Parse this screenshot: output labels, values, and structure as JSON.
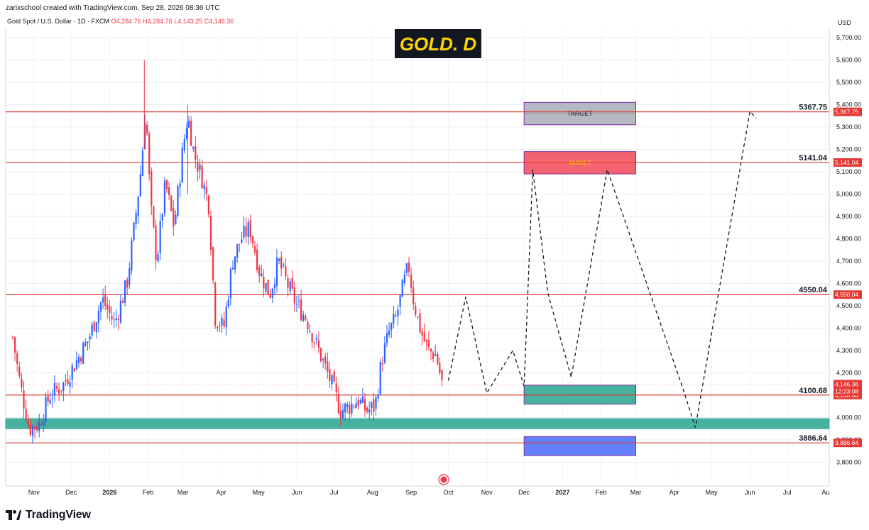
{
  "header": {
    "author_line": "zarixschool created with TradingView.com, Sep 28, 2026 08:36 UTC",
    "symbol": "Gold Spot / U.S. Dollar · 1D · FXCM",
    "open": "O4,284.76",
    "high": "H4,284.76",
    "low": "L4,143.25",
    "close": "C4,146.36",
    "currency": "USD"
  },
  "footer": {
    "brand": "TradingView"
  },
  "colors": {
    "up": "#2962ff",
    "down": "#f23645",
    "level_line": "#e53935",
    "grid": "#d1d4dc",
    "teal_zone": "#3fae9b",
    "target_gray": "#b2b5be",
    "target_red": "#f45b69",
    "blue_zone": "#5b7cfa",
    "title_bg": "#131722",
    "title_fg": "#ffd600"
  },
  "chart_data": {
    "type": "candlestick",
    "title": "GOLD. D",
    "x_axis_labels": [
      "Nov",
      "Dec",
      "2026",
      "Feb",
      "Mar",
      "Apr",
      "May",
      "Jun",
      "Jul",
      "Aug",
      "Sep",
      "Oct",
      "Nov",
      "Dec",
      "2027",
      "Feb",
      "Mar",
      "Apr",
      "May",
      "Jun",
      "Jul",
      "Au"
    ],
    "y_axis_ticks": [
      "5,700.00",
      "5,600.00",
      "5,500.00",
      "5,400.00",
      "5,300.00",
      "5,200.00",
      "5,100.00",
      "5,000.00",
      "4,900.00",
      "4,800.00",
      "4,700.00",
      "4,600.00",
      "4,500.00",
      "4,400.00",
      "4,300.00",
      "4,200.00",
      "4,000.00",
      "3,900.00",
      "3,800.00"
    ],
    "y_range": [
      3700,
      5740
    ],
    "levels": [
      {
        "label": "5367.75",
        "value": 5367.75,
        "axis_label": "5,367.75"
      },
      {
        "label": "5141.04",
        "value": 5141.04,
        "axis_label": "5,141.04"
      },
      {
        "label": "4550.04",
        "value": 4550.04,
        "axis_label": "4,550.04"
      },
      {
        "label": "4100.68",
        "value": 4100.68,
        "axis_label": "4,100.68"
      },
      {
        "label": "3886.64",
        "value": 3886.64,
        "axis_label": "3,886.64"
      }
    ],
    "current_price": {
      "value": 4146.36,
      "label": "4,146.36",
      "countdown": "12:23:08"
    },
    "zones": [
      {
        "name": "target-upper",
        "label": "TARGET",
        "low": 5310,
        "high": 5410,
        "x_start": "2026-12-01",
        "x_end": "2027-03-01"
      },
      {
        "name": "target-lower",
        "label": "TARGET",
        "low": 5090,
        "high": 5190,
        "x_start": "2026-12-01",
        "x_end": "2027-03-01"
      },
      {
        "name": "support-box",
        "label": "",
        "low": 4060,
        "high": 4145,
        "x_start": "2026-12-01",
        "x_end": "2027-03-01"
      },
      {
        "name": "support-band",
        "label": "",
        "low": 3950,
        "high": 3995,
        "x_start": "2025-10-15",
        "x_end": "2027-08-01"
      },
      {
        "name": "demand-box",
        "label": "",
        "low": 3830,
        "high": 3915,
        "x_start": "2026-12-01",
        "x_end": "2027-03-01"
      }
    ],
    "projection_path": [
      {
        "x": "2026-10-01",
        "y": 4165
      },
      {
        "x": "2026-10-15",
        "y": 4540
      },
      {
        "x": "2026-11-01",
        "y": 4110
      },
      {
        "x": "2026-11-22",
        "y": 4300
      },
      {
        "x": "2026-12-01",
        "y": 4140
      },
      {
        "x": "2026-12-08",
        "y": 5110
      },
      {
        "x": "2026-12-20",
        "y": 4560
      },
      {
        "x": "2027-01-08",
        "y": 4180
      },
      {
        "x": "2027-02-06",
        "y": 5110
      },
      {
        "x": "2027-04-08",
        "y": 4130
      },
      {
        "x": "2027-04-18",
        "y": 3955
      },
      {
        "x": "2027-06-01",
        "y": 5370
      },
      {
        "x": "2027-06-06",
        "y": 5340
      }
    ],
    "price_path": [
      {
        "x": "2025-10-15",
        "y": 4360
      },
      {
        "x": "2025-10-20",
        "y": 4180
      },
      {
        "x": "2025-10-28",
        "y": 3950
      },
      {
        "x": "2025-11-05",
        "y": 3970
      },
      {
        "x": "2025-11-14",
        "y": 4100
      },
      {
        "x": "2025-11-25",
        "y": 4150
      },
      {
        "x": "2025-12-05",
        "y": 4250
      },
      {
        "x": "2025-12-15",
        "y": 4350
      },
      {
        "x": "2025-12-26",
        "y": 4530
      },
      {
        "x": "2026-01-05",
        "y": 4420
      },
      {
        "x": "2026-01-15",
        "y": 4600
      },
      {
        "x": "2026-01-22",
        "y": 4900
      },
      {
        "x": "2026-01-27",
        "y": 5150
      },
      {
        "x": "2026-01-30",
        "y": 5400
      },
      {
        "x": "2026-02-03",
        "y": 4950
      },
      {
        "x": "2026-02-08",
        "y": 4700
      },
      {
        "x": "2026-02-15",
        "y": 5050
      },
      {
        "x": "2026-02-22",
        "y": 4850
      },
      {
        "x": "2026-03-01",
        "y": 5200
      },
      {
        "x": "2026-03-05",
        "y": 5350
      },
      {
        "x": "2026-03-10",
        "y": 5180
      },
      {
        "x": "2026-03-16",
        "y": 5080
      },
      {
        "x": "2026-03-22",
        "y": 4950
      },
      {
        "x": "2026-03-27",
        "y": 4450
      },
      {
        "x": "2026-04-03",
        "y": 4400
      },
      {
        "x": "2026-04-10",
        "y": 4700
      },
      {
        "x": "2026-04-17",
        "y": 4800
      },
      {
        "x": "2026-04-24",
        "y": 4850
      },
      {
        "x": "2026-05-02",
        "y": 4650
      },
      {
        "x": "2026-05-10",
        "y": 4550
      },
      {
        "x": "2026-05-17",
        "y": 4700
      },
      {
        "x": "2026-05-24",
        "y": 4600
      },
      {
        "x": "2026-06-01",
        "y": 4500
      },
      {
        "x": "2026-06-08",
        "y": 4450
      },
      {
        "x": "2026-06-15",
        "y": 4350
      },
      {
        "x": "2026-06-22",
        "y": 4250
      },
      {
        "x": "2026-06-29",
        "y": 4150
      },
      {
        "x": "2026-07-06",
        "y": 4030
      },
      {
        "x": "2026-07-13",
        "y": 4050
      },
      {
        "x": "2026-07-20",
        "y": 4080
      },
      {
        "x": "2026-07-27",
        "y": 4030
      },
      {
        "x": "2026-08-03",
        "y": 4050
      },
      {
        "x": "2026-08-08",
        "y": 4250
      },
      {
        "x": "2026-08-14",
        "y": 4380
      },
      {
        "x": "2026-08-20",
        "y": 4450
      },
      {
        "x": "2026-08-26",
        "y": 4600
      },
      {
        "x": "2026-08-30",
        "y": 4680
      },
      {
        "x": "2026-09-03",
        "y": 4520
      },
      {
        "x": "2026-09-09",
        "y": 4380
      },
      {
        "x": "2026-09-15",
        "y": 4300
      },
      {
        "x": "2026-09-21",
        "y": 4280
      },
      {
        "x": "2026-09-26",
        "y": 4150
      }
    ],
    "spike_highs": [
      {
        "x": "2026-01-29",
        "y": 5600
      },
      {
        "x": "2026-03-05",
        "y": 5400
      }
    ]
  }
}
